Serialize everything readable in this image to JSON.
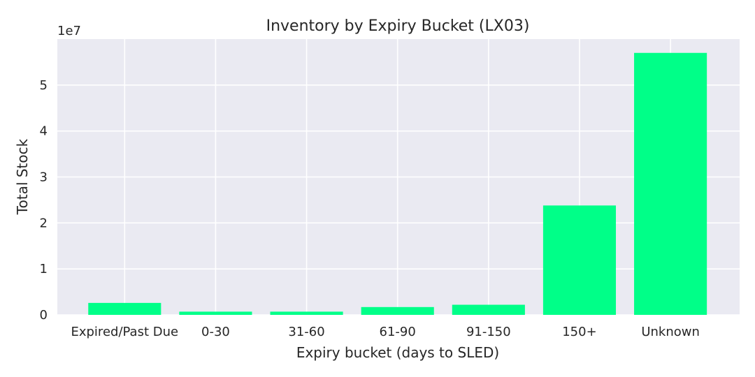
{
  "chart_data": {
    "type": "bar",
    "title": "Inventory by Expiry Bucket (LX03)",
    "xlabel": "Expiry bucket (days to SLED)",
    "ylabel": "Total Stock",
    "y_scale_label": "1e7",
    "categories": [
      "Expired/Past Due",
      "0-30",
      "31-60",
      "61-90",
      "91-150",
      "150+",
      "Unknown"
    ],
    "values": [
      2600000,
      700000,
      700000,
      1700000,
      2200000,
      23800000,
      57000000
    ],
    "ylim": [
      0,
      60000000
    ],
    "yticks": [
      0,
      10000000,
      20000000,
      30000000,
      40000000,
      50000000
    ],
    "ytick_labels": [
      "0",
      "1",
      "2",
      "3",
      "4",
      "5"
    ],
    "grid": true,
    "bar_color": "#00ff88",
    "plot_bg": "#eaeaf2",
    "grid_color": "#ffffff"
  }
}
